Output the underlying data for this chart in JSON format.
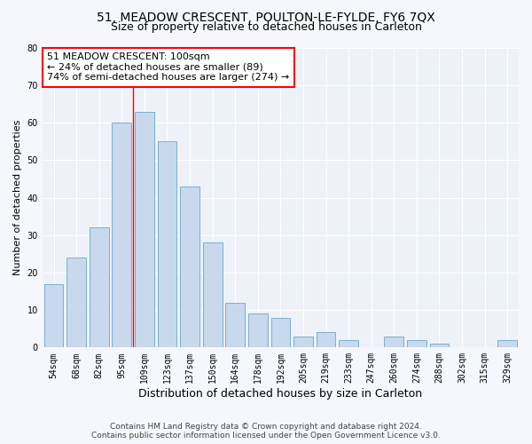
{
  "title": "51, MEADOW CRESCENT, POULTON-LE-FYLDE, FY6 7QX",
  "subtitle": "Size of property relative to detached houses in Carleton",
  "xlabel": "Distribution of detached houses by size in Carleton",
  "ylabel": "Number of detached properties",
  "bar_color": "#c8d8ed",
  "bar_edge_color": "#7aafd4",
  "background_color": "#eef2f8",
  "grid_color": "#ffffff",
  "fig_background": "#f5f7fc",
  "categories": [
    "54sqm",
    "68sqm",
    "82sqm",
    "95sqm",
    "109sqm",
    "123sqm",
    "137sqm",
    "150sqm",
    "164sqm",
    "178sqm",
    "192sqm",
    "205sqm",
    "219sqm",
    "233sqm",
    "247sqm",
    "260sqm",
    "274sqm",
    "288sqm",
    "302sqm",
    "315sqm",
    "329sqm"
  ],
  "values": [
    17,
    24,
    32,
    60,
    63,
    55,
    43,
    28,
    12,
    9,
    8,
    3,
    4,
    2,
    0,
    3,
    2,
    1,
    0,
    0,
    2
  ],
  "ylim": [
    0,
    80
  ],
  "yticks": [
    0,
    10,
    20,
    30,
    40,
    50,
    60,
    70,
    80
  ],
  "annotation_line1": "51 MEADOW CRESCENT: 100sqm",
  "annotation_line2": "← 24% of detached houses are smaller (89)",
  "annotation_line3": "74% of semi-detached houses are larger (274) →",
  "red_line_x": 3.5,
  "footer_line1": "Contains HM Land Registry data © Crown copyright and database right 2024.",
  "footer_line2": "Contains public sector information licensed under the Open Government Licence v3.0.",
  "title_fontsize": 10,
  "subtitle_fontsize": 9,
  "ylabel_fontsize": 8,
  "xlabel_fontsize": 9,
  "tick_fontsize": 7,
  "annot_fontsize": 8,
  "footer_fontsize": 6.5
}
